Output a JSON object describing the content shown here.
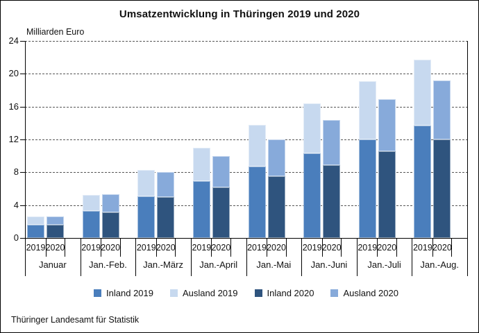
{
  "title": "Umsatzentwicklung in Thüringen 2019 und 2020",
  "y_axis": {
    "unit_label": "Milliarden Euro",
    "ticks": [
      0,
      4,
      8,
      12,
      16,
      20,
      24
    ],
    "max": 24
  },
  "x_axis": {
    "year_labels": [
      "2019",
      "2020"
    ]
  },
  "source": "Thüringer Landesamt für Statistik",
  "chart_data": {
    "type": "bar",
    "stacked": true,
    "title": "Umsatzentwicklung in Thüringen 2019 und 2020",
    "ylabel": "Milliarden Euro",
    "ylim": [
      0,
      24
    ],
    "grid": "horizontal dotted",
    "legend_position": "bottom",
    "categories": [
      "Januar",
      "Jan.-Feb.",
      "Jan.-März",
      "Jan.-April",
      "Jan.-Mai",
      "Jan.-Juni",
      "Jan.-Juli",
      "Jan.-Aug."
    ],
    "bars_per_group": [
      "2019",
      "2020"
    ],
    "series": [
      {
        "name": "Inland 2019",
        "year": "2019",
        "stack_order": "bottom",
        "color": "#4a7ebc",
        "values": [
          1.6,
          3.3,
          5.1,
          6.9,
          8.7,
          10.3,
          12.0,
          13.7
        ]
      },
      {
        "name": "Ausland 2019",
        "year": "2019",
        "stack_order": "top",
        "color": "#c7d9ef",
        "values": [
          1.0,
          1.9,
          3.2,
          4.1,
          5.1,
          6.1,
          7.1,
          8.0
        ]
      },
      {
        "name": "Inland 2020",
        "year": "2020",
        "stack_order": "bottom",
        "color": "#2f547e",
        "values": [
          1.6,
          3.1,
          5.0,
          6.2,
          7.5,
          8.9,
          10.6,
          12.0
        ]
      },
      {
        "name": "Ausland 2020",
        "year": "2020",
        "stack_order": "top",
        "color": "#87aada",
        "values": [
          1.0,
          2.2,
          3.0,
          3.8,
          4.5,
          5.5,
          6.3,
          7.2
        ]
      }
    ],
    "totals_2019": [
      2.6,
      5.2,
      8.3,
      11.0,
      13.8,
      16.4,
      19.1,
      21.7
    ],
    "totals_2020": [
      2.6,
      5.3,
      8.0,
      10.0,
      12.0,
      14.4,
      16.9,
      19.2
    ]
  },
  "style_colors": {
    "axis": "#000000",
    "gridline": "#555555",
    "text": "#111111",
    "background": "#ffffff"
  }
}
